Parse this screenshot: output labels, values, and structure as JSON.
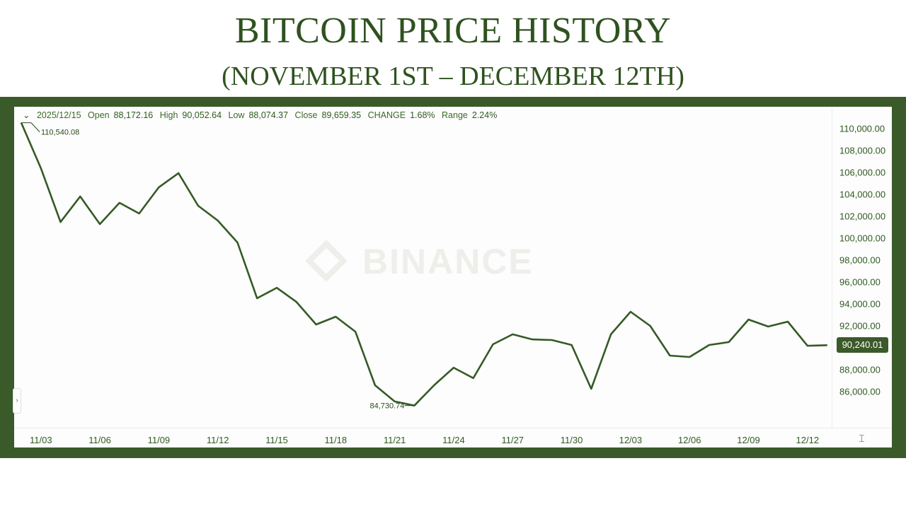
{
  "title": "BITCOIN PRICE HISTORY",
  "subtitle": "(NOVEMBER 1ST – DECEMBER 12TH)",
  "watermark": "BINANCE",
  "infobar": {
    "date": "2025/12/15",
    "open_label": "Open",
    "open": "88,172.16",
    "high_label": "High",
    "high": "90,052.64",
    "low_label": "Low",
    "low": "88,074.37",
    "close_label": "Close",
    "close": "89,659.35",
    "change_label": "CHANGE",
    "change": "1.68%",
    "range_label": "Range",
    "range": "2.24%"
  },
  "colors": {
    "frame": "#3b5a29",
    "line": "#355a25",
    "title": "#2f5220"
  },
  "chart_data": {
    "type": "line",
    "title": "BITCOIN PRICE HISTORY",
    "subtitle": "(NOVEMBER 1ST – DECEMBER 12TH)",
    "x": [
      "11/02",
      "11/03",
      "11/04",
      "11/05",
      "11/06",
      "11/07",
      "11/08",
      "11/09",
      "11/10",
      "11/11",
      "11/12",
      "11/13",
      "11/14",
      "11/15",
      "11/16",
      "11/17",
      "11/18",
      "11/19",
      "11/20",
      "11/21",
      "11/22",
      "11/23",
      "11/24",
      "11/25",
      "11/26",
      "11/27",
      "11/28",
      "11/29",
      "11/30",
      "12/01",
      "12/02",
      "12/03",
      "12/04",
      "12/05",
      "12/06",
      "12/07",
      "12/08",
      "12/09",
      "12/10",
      "12/11",
      "12/12",
      "12/13"
    ],
    "values": [
      110540,
      106390,
      101480,
      103810,
      101290,
      103230,
      102260,
      104650,
      105940,
      102970,
      101610,
      99610,
      94520,
      95480,
      94190,
      92130,
      92840,
      91480,
      86580,
      85100,
      84731,
      86580,
      88190,
      87230,
      90320,
      91230,
      90770,
      90710,
      90260,
      86260,
      91230,
      93290,
      92000,
      89290,
      89160,
      90260,
      90520,
      92580,
      91940,
      92390,
      90190,
      90240
    ],
    "x_ticks": [
      "11/03",
      "11/06",
      "11/09",
      "11/12",
      "11/15",
      "11/18",
      "11/21",
      "11/24",
      "11/27",
      "11/30",
      "12/03",
      "12/06",
      "12/09",
      "12/12"
    ],
    "y_ticks": [
      "110,000.00",
      "108,000.00",
      "106,000.00",
      "104,000.00",
      "102,000.00",
      "100,000.00",
      "98,000.00",
      "96,000.00",
      "94,000.00",
      "92,000.00",
      "88,000.00",
      "86,000.00"
    ],
    "ylim": [
      84000,
      110600
    ],
    "annotations": {
      "max_label": "110,540.08",
      "min_label": "84,730.74",
      "current_price": "90,240.01"
    },
    "grid": false,
    "legend": "none"
  }
}
